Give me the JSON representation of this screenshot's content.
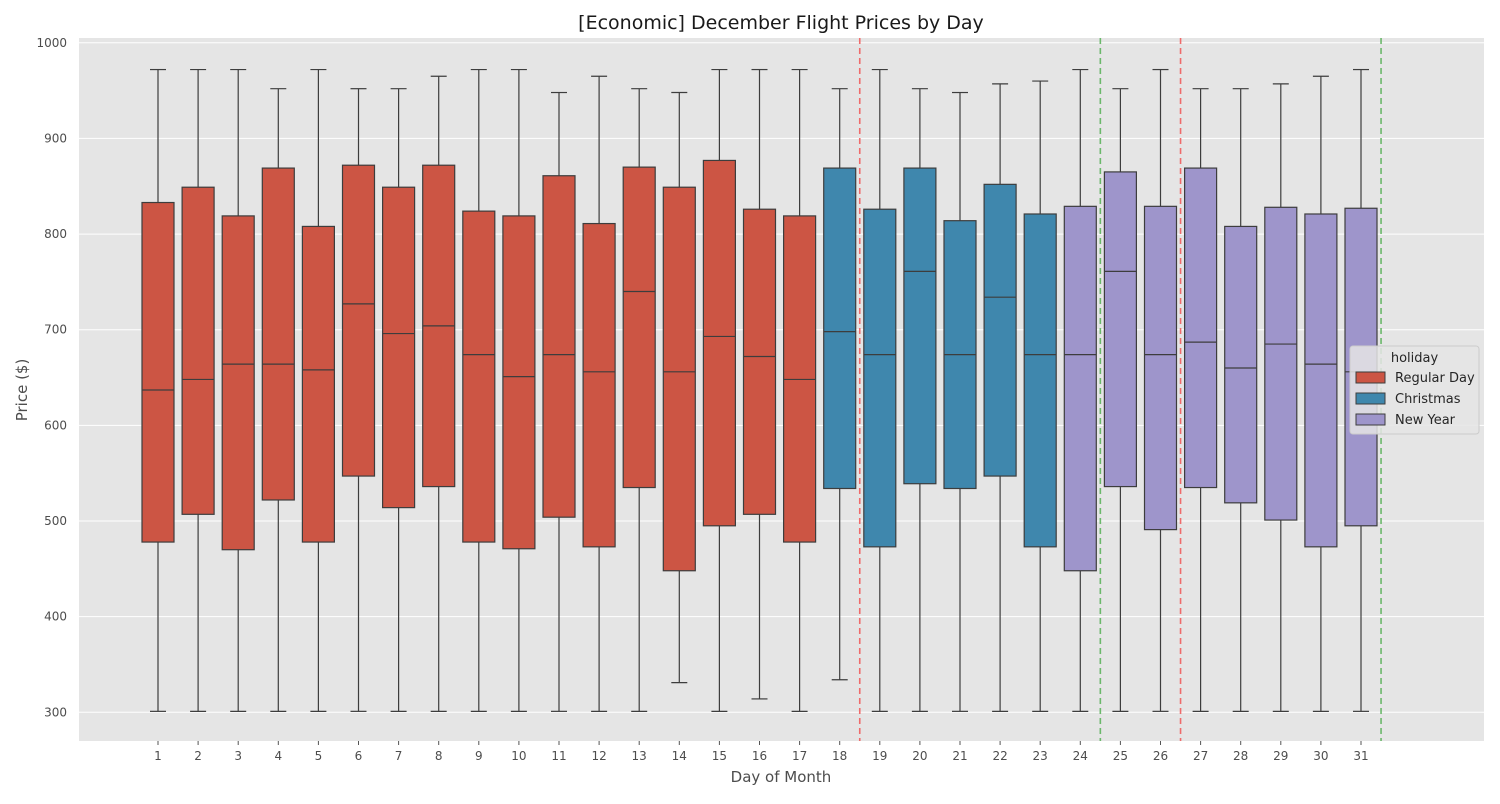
{
  "chart_data": {
    "type": "box",
    "title": "[Economic] December Flight Prices by Day",
    "xlabel": "Day of Month",
    "ylabel": "Price ($)",
    "ylim": [
      270,
      1005
    ],
    "yticks": [
      300,
      400,
      500,
      600,
      700,
      800,
      900,
      1000
    ],
    "grid": true,
    "legend": {
      "title": "holiday",
      "placement": "center-right",
      "entries": [
        {
          "label": "Regular Day",
          "color": "#cc5544"
        },
        {
          "label": "Christmas",
          "color": "#3f87ad"
        },
        {
          "label": "New Year",
          "color": "#9e95cb"
        }
      ]
    },
    "colors": {
      "Regular Day": "#cc5544",
      "Christmas": "#3f87ad",
      "New Year": "#9e95cb",
      "plot_background": "#e5e5e5",
      "red_line": "#ef6b6b",
      "green_line": "#6bb86b"
    },
    "vertical_lines": [
      {
        "x": 18.5,
        "color": "#ef6b6b",
        "style": "dashed"
      },
      {
        "x": 24.5,
        "color": "#6bb86b",
        "style": "dashed"
      },
      {
        "x": 26.5,
        "color": "#ef6b6b",
        "style": "dashed"
      },
      {
        "x": 31.5,
        "color": "#6bb86b",
        "style": "dashed"
      }
    ],
    "boxes": [
      {
        "day": "1",
        "holiday": "Regular Day",
        "whislo": 301,
        "q1": 478,
        "med": 637,
        "q3": 833,
        "whishi": 972
      },
      {
        "day": "2",
        "holiday": "Regular Day",
        "whislo": 301,
        "q1": 507,
        "med": 648,
        "q3": 849,
        "whishi": 972
      },
      {
        "day": "3",
        "holiday": "Regular Day",
        "whislo": 301,
        "q1": 470,
        "med": 664,
        "q3": 819,
        "whishi": 972
      },
      {
        "day": "4",
        "holiday": "Regular Day",
        "whislo": 301,
        "q1": 522,
        "med": 664,
        "q3": 869,
        "whishi": 952
      },
      {
        "day": "5",
        "holiday": "Regular Day",
        "whislo": 301,
        "q1": 478,
        "med": 658,
        "q3": 808,
        "whishi": 972
      },
      {
        "day": "6",
        "holiday": "Regular Day",
        "whislo": 301,
        "q1": 547,
        "med": 727,
        "q3": 872,
        "whishi": 952
      },
      {
        "day": "7",
        "holiday": "Regular Day",
        "whislo": 301,
        "q1": 514,
        "med": 696,
        "q3": 849,
        "whishi": 952
      },
      {
        "day": "8",
        "holiday": "Regular Day",
        "whislo": 301,
        "q1": 536,
        "med": 704,
        "q3": 872,
        "whishi": 965
      },
      {
        "day": "9",
        "holiday": "Regular Day",
        "whislo": 301,
        "q1": 478,
        "med": 674,
        "q3": 824,
        "whishi": 972
      },
      {
        "day": "10",
        "holiday": "Regular Day",
        "whislo": 301,
        "q1": 471,
        "med": 651,
        "q3": 819,
        "whishi": 972
      },
      {
        "day": "11",
        "holiday": "Regular Day",
        "whislo": 301,
        "q1": 504,
        "med": 674,
        "q3": 861,
        "whishi": 948
      },
      {
        "day": "12",
        "holiday": "Regular Day",
        "whislo": 301,
        "q1": 473,
        "med": 656,
        "q3": 811,
        "whishi": 965
      },
      {
        "day": "13",
        "holiday": "Regular Day",
        "whislo": 301,
        "q1": 535,
        "med": 740,
        "q3": 870,
        "whishi": 952
      },
      {
        "day": "14",
        "holiday": "Regular Day",
        "whislo": 331,
        "q1": 448,
        "med": 656,
        "q3": 849,
        "whishi": 948
      },
      {
        "day": "15",
        "holiday": "Regular Day",
        "whislo": 301,
        "q1": 495,
        "med": 693,
        "q3": 877,
        "whishi": 972
      },
      {
        "day": "16",
        "holiday": "Regular Day",
        "whislo": 314,
        "q1": 507,
        "med": 672,
        "q3": 826,
        "whishi": 972
      },
      {
        "day": "17",
        "holiday": "Regular Day",
        "whislo": 301,
        "q1": 478,
        "med": 648,
        "q3": 819,
        "whishi": 972
      },
      {
        "day": "18",
        "holiday": "Christmas",
        "whislo": 334,
        "q1": 534,
        "med": 698,
        "q3": 869,
        "whishi": 952
      },
      {
        "day": "19",
        "holiday": "Christmas",
        "whislo": 301,
        "q1": 473,
        "med": 674,
        "q3": 826,
        "whishi": 972
      },
      {
        "day": "20",
        "holiday": "Christmas",
        "whislo": 301,
        "q1": 539,
        "med": 761,
        "q3": 869,
        "whishi": 952
      },
      {
        "day": "21",
        "holiday": "Christmas",
        "whislo": 301,
        "q1": 534,
        "med": 674,
        "q3": 814,
        "whishi": 948
      },
      {
        "day": "22",
        "holiday": "Christmas",
        "whislo": 301,
        "q1": 547,
        "med": 734,
        "q3": 852,
        "whishi": 957
      },
      {
        "day": "23",
        "holiday": "Christmas",
        "whislo": 301,
        "q1": 473,
        "med": 674,
        "q3": 821,
        "whishi": 960
      },
      {
        "day": "24",
        "holiday": "New Year",
        "whislo": 301,
        "q1": 448,
        "med": 674,
        "q3": 829,
        "whishi": 972
      },
      {
        "day": "25",
        "holiday": "New Year",
        "whislo": 301,
        "q1": 536,
        "med": 761,
        "q3": 865,
        "whishi": 952
      },
      {
        "day": "26",
        "holiday": "New Year",
        "whislo": 301,
        "q1": 491,
        "med": 674,
        "q3": 829,
        "whishi": 972
      },
      {
        "day": "27",
        "holiday": "New Year",
        "whislo": 301,
        "q1": 535,
        "med": 687,
        "q3": 869,
        "whishi": 952
      },
      {
        "day": "28",
        "holiday": "New Year",
        "whislo": 301,
        "q1": 519,
        "med": 660,
        "q3": 808,
        "whishi": 952
      },
      {
        "day": "29",
        "holiday": "New Year",
        "whislo": 301,
        "q1": 501,
        "med": 685,
        "q3": 828,
        "whishi": 957
      },
      {
        "day": "30",
        "holiday": "New Year",
        "whislo": 301,
        "q1": 473,
        "med": 664,
        "q3": 821,
        "whishi": 965
      },
      {
        "day": "31",
        "holiday": "New Year",
        "whislo": 301,
        "q1": 495,
        "med": 656,
        "q3": 827,
        "whishi": 972
      }
    ]
  }
}
